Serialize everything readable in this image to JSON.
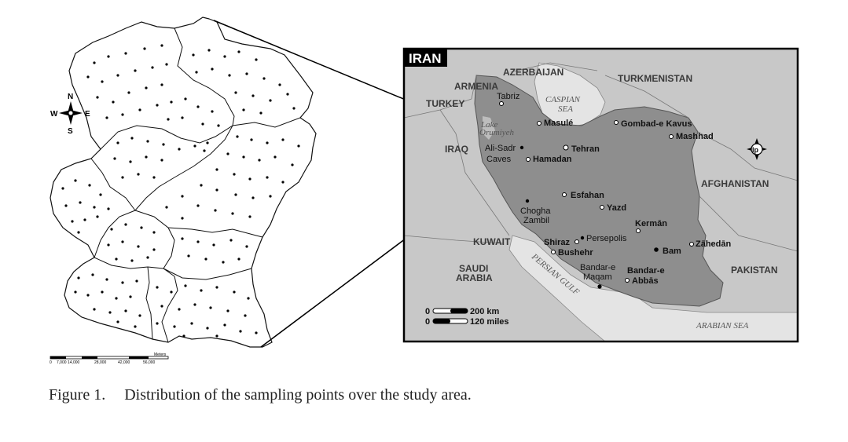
{
  "caption": {
    "figure_number": "Figure 1.",
    "text": "Distribution of the sampling points over the study area."
  },
  "study_area": {
    "compass": {
      "n": "N",
      "s": "S",
      "e": "E",
      "w": "W"
    },
    "scale_bar": {
      "unit": "Meters",
      "ticks": [
        "0",
        "7,000",
        "14,000",
        "28,000",
        "42,000",
        "56,000"
      ]
    },
    "sampling_points": "dots"
  },
  "iran_map": {
    "title": "IRAN",
    "countries": [
      "AZERBAIJAN",
      "TURKMENISTAN",
      "ARMENIA",
      "TURKEY",
      "IRAQ",
      "AFGHANISTAN",
      "KUWAIT",
      "SAUDI",
      "ARABIA",
      "PAKISTAN"
    ],
    "seas": [
      "CASPIAN",
      "SEA",
      "Lake",
      "Orumiyeh",
      "PERSIAN GULF",
      "ARABIAN SEA"
    ],
    "cities": [
      "Tabriz",
      "Masulé",
      "Gombad-e Kavus",
      "Mashhad",
      "Tehran",
      "Ali-Sadr",
      "Caves",
      "Hamadan",
      "Esfahan",
      "Yazd",
      "Chogha",
      "Zambil",
      "Kermān",
      "Shiraz",
      "Persepolis",
      "Bushehr",
      "Bam",
      "Zāhedān",
      "Bandar-e",
      "Maqam",
      "Bandar-e",
      "Abbās"
    ],
    "scale": {
      "km": "200 km",
      "miles": "120 miles",
      "zero": "0"
    },
    "logo": "lp"
  },
  "colors": {
    "land": "#c6c6c6",
    "iran": "#8c8c8c",
    "water": "#e4e4e4",
    "lines": "#000000"
  }
}
